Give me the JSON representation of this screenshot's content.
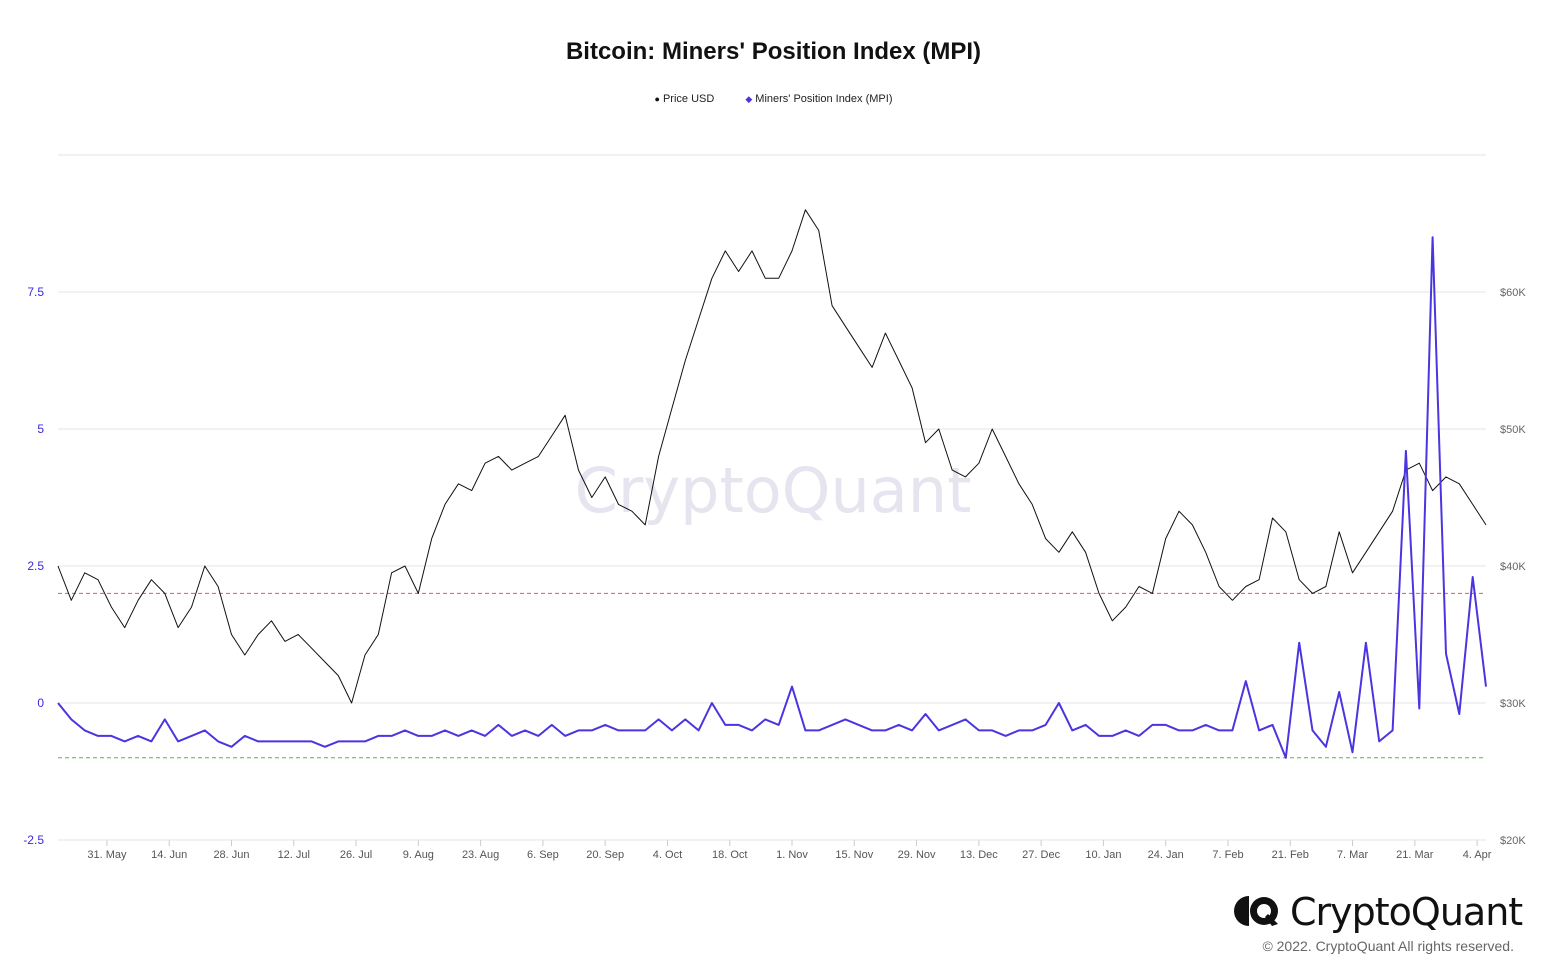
{
  "title": "Bitcoin: Miners' Position Index (MPI)",
  "legend": [
    {
      "label": "Price USD",
      "color": "#111111",
      "marker": "●"
    },
    {
      "label": "Miners' Position Index (MPI)",
      "color": "#4a35e0",
      "marker": "◆"
    }
  ],
  "watermark": "CryptoQuant",
  "brand": {
    "name": "CryptoQuant",
    "copyright": "© 2022. CryptoQuant All rights reserved."
  },
  "colors": {
    "price": "#111111",
    "mpi": "#4a35e0",
    "upper_threshold": "#e0604a",
    "lower_threshold": "#52b84a",
    "grid": "#e6e6e6"
  },
  "chart_data": {
    "type": "line",
    "x_range": [
      "2021-05-20",
      "2022-04-05"
    ],
    "x_ticks": [
      "31. May",
      "14. Jun",
      "28. Jun",
      "12. Jul",
      "26. Jul",
      "9. Aug",
      "23. Aug",
      "6. Sep",
      "20. Sep",
      "4. Oct",
      "18. Oct",
      "1. Nov",
      "15. Nov",
      "29. Nov",
      "13. Dec",
      "27. Dec",
      "10. Jan",
      "24. Jan",
      "7. Feb",
      "21. Feb",
      "7. Mar",
      "21. Mar",
      "4. Apr"
    ],
    "y_left": {
      "ticks": [
        "7.5",
        "5",
        "2.5",
        "0",
        "-2.5"
      ],
      "range": [
        -2.5,
        10
      ],
      "label": ""
    },
    "y_right": {
      "ticks": [
        "$60K",
        "$50K",
        "$40K",
        "$30K",
        "$20K"
      ],
      "range": [
        20000,
        70000
      ],
      "label": ""
    },
    "thresholds": {
      "upper": 2,
      "lower": -1
    },
    "series": [
      {
        "name": "Price USD",
        "axis": "right",
        "x": [
          0,
          3,
          6,
          9,
          12,
          15,
          18,
          21,
          24,
          27,
          30,
          33,
          36,
          39,
          42,
          45,
          48,
          51,
          54,
          57,
          60,
          63,
          66,
          69,
          72,
          75,
          78,
          81,
          84,
          87,
          90,
          93,
          96,
          99,
          102,
          105,
          108,
          111,
          114,
          117,
          120,
          123,
          126,
          129,
          132,
          135,
          138,
          141,
          144,
          147,
          150,
          153,
          156,
          159,
          162,
          165,
          168,
          171,
          174,
          177,
          180,
          183,
          186,
          189,
          192,
          195,
          198,
          201,
          204,
          207,
          210,
          213,
          216,
          219,
          222,
          225,
          228,
          231,
          234,
          237,
          240,
          243,
          246,
          249,
          252,
          255,
          258,
          261,
          264,
          267,
          270,
          273,
          276,
          279,
          282,
          285,
          288,
          291,
          294,
          297,
          300,
          303,
          306,
          309,
          312,
          315,
          318,
          321
        ],
        "values": [
          40000,
          37500,
          39500,
          39000,
          37000,
          35500,
          37500,
          39000,
          38000,
          35500,
          37000,
          40000,
          38500,
          35000,
          33500,
          35000,
          36000,
          34500,
          35000,
          34000,
          33000,
          32000,
          30000,
          33500,
          35000,
          39500,
          40000,
          38000,
          42000,
          44500,
          46000,
          45500,
          47500,
          48000,
          47000,
          47500,
          48000,
          49500,
          51000,
          47000,
          45000,
          46500,
          44500,
          44000,
          43000,
          48000,
          51500,
          55000,
          58000,
          61000,
          63000,
          61500,
          63000,
          61000,
          61000,
          63000,
          66000,
          64500,
          59000,
          57500,
          56000,
          54500,
          57000,
          55000,
          53000,
          49000,
          50000,
          47000,
          46500,
          47500,
          50000,
          48000,
          46000,
          44500,
          42000,
          41000,
          42500,
          41000,
          38000,
          36000,
          37000,
          38500,
          38000,
          42000,
          44000,
          43000,
          41000,
          38500,
          37500,
          38500,
          39000,
          43500,
          42500,
          39000,
          38000,
          38500,
          42500,
          39500,
          41000,
          42500,
          44000,
          47000,
          47500,
          45500,
          46500,
          46000,
          44500,
          43000
        ]
      },
      {
        "name": "Miners' Position Index (MPI)",
        "axis": "left",
        "x": [
          0,
          3,
          6,
          9,
          12,
          15,
          18,
          21,
          24,
          27,
          30,
          33,
          36,
          39,
          42,
          45,
          48,
          51,
          54,
          57,
          60,
          63,
          66,
          69,
          72,
          75,
          78,
          81,
          84,
          87,
          90,
          93,
          96,
          99,
          102,
          105,
          108,
          111,
          114,
          117,
          120,
          123,
          126,
          129,
          132,
          135,
          138,
          141,
          144,
          147,
          150,
          153,
          156,
          159,
          162,
          165,
          168,
          171,
          174,
          177,
          180,
          183,
          186,
          189,
          192,
          195,
          198,
          201,
          204,
          207,
          210,
          213,
          216,
          219,
          222,
          225,
          228,
          231,
          234,
          237,
          240,
          243,
          246,
          249,
          252,
          255,
          258,
          261,
          264,
          267,
          270,
          273,
          276,
          279,
          282,
          285,
          288,
          291,
          294,
          297,
          300,
          303,
          306,
          309,
          312,
          315,
          318,
          321
        ],
        "values": [
          0.0,
          -0.3,
          -0.5,
          -0.6,
          -0.6,
          -0.7,
          -0.6,
          -0.7,
          -0.3,
          -0.7,
          -0.6,
          -0.5,
          -0.7,
          -0.8,
          -0.6,
          -0.7,
          -0.7,
          -0.7,
          -0.7,
          -0.7,
          -0.8,
          -0.7,
          -0.7,
          -0.7,
          -0.6,
          -0.6,
          -0.5,
          -0.6,
          -0.6,
          -0.5,
          -0.6,
          -0.5,
          -0.6,
          -0.4,
          -0.6,
          -0.5,
          -0.6,
          -0.4,
          -0.6,
          -0.5,
          -0.5,
          -0.4,
          -0.5,
          -0.5,
          -0.5,
          -0.3,
          -0.5,
          -0.3,
          -0.5,
          0.0,
          -0.4,
          -0.4,
          -0.5,
          -0.3,
          -0.4,
          0.3,
          -0.5,
          -0.5,
          -0.4,
          -0.3,
          -0.4,
          -0.5,
          -0.5,
          -0.4,
          -0.5,
          -0.2,
          -0.5,
          -0.4,
          -0.3,
          -0.5,
          -0.5,
          -0.6,
          -0.5,
          -0.5,
          -0.4,
          0.0,
          -0.5,
          -0.4,
          -0.6,
          -0.6,
          -0.5,
          -0.6,
          -0.4,
          -0.4,
          -0.5,
          -0.5,
          -0.4,
          -0.5,
          -0.5,
          0.4,
          -0.5,
          -0.4,
          -1.0,
          1.1,
          -0.5,
          -0.8,
          0.2,
          -0.9,
          1.1,
          -0.7,
          -0.5,
          4.6,
          -0.1,
          8.5,
          0.9,
          -0.2,
          2.3,
          0.3
        ]
      }
    ]
  }
}
